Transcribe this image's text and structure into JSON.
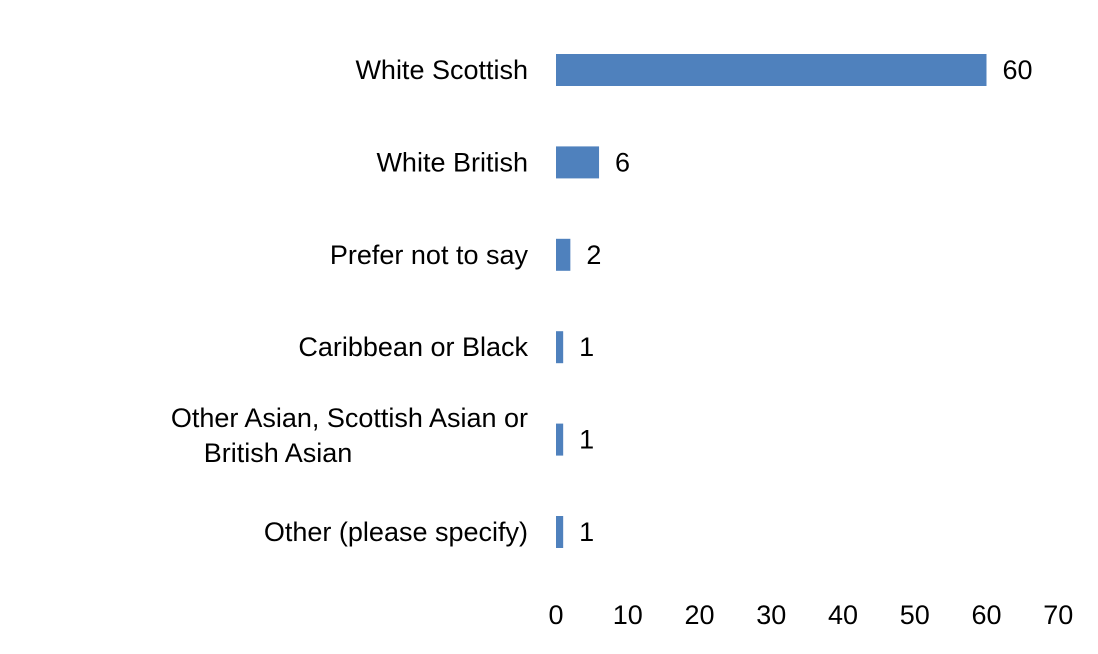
{
  "chart_data": {
    "type": "bar",
    "orientation": "horizontal",
    "categories": [
      "White Scottish",
      "White British",
      "Prefer not to say",
      "Caribbean or Black",
      "Other Asian, Scottish Asian or British Asian",
      "Other (please specify)"
    ],
    "values": [
      60,
      6,
      2,
      1,
      1,
      1
    ],
    "data_labels": [
      "60",
      "6",
      "2",
      "1",
      "1",
      "1"
    ],
    "xlim": [
      0,
      70
    ],
    "x_ticks": [
      0,
      10,
      20,
      30,
      40,
      50,
      60,
      70
    ],
    "title": "",
    "xlabel": "",
    "ylabel": "",
    "grid": false,
    "legend": "none",
    "bar_color": "#4f81bd"
  }
}
